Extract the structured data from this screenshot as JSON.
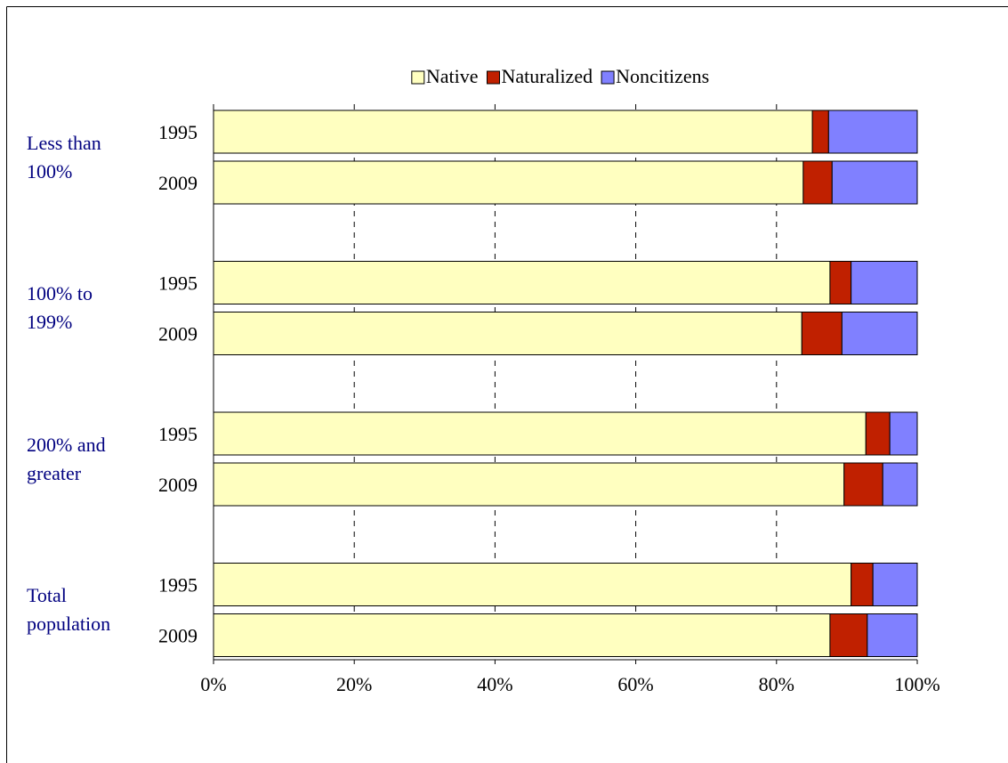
{
  "chart_data": {
    "type": "bar",
    "orientation": "horizontal",
    "stacked": true,
    "groups": [
      "Less than 100%",
      "100% to 199%",
      "200% and greater",
      "Total population"
    ],
    "categories": [
      "1995",
      "2009",
      "1995",
      "2009",
      "1995",
      "2009",
      "1995",
      "2009"
    ],
    "series": [
      {
        "name": "Native",
        "color": "#ffffc0",
        "values": [
          85.1,
          83.8,
          87.6,
          83.6,
          92.7,
          89.6,
          90.6,
          87.6
        ]
      },
      {
        "name": "Naturalized",
        "color": "#c02000",
        "values": [
          2.3,
          4.1,
          3.0,
          5.7,
          3.4,
          5.5,
          3.1,
          5.3
        ]
      },
      {
        "name": "Noncitizens",
        "color": "#8080ff",
        "values": [
          12.6,
          12.1,
          9.4,
          10.7,
          3.9,
          4.9,
          6.3,
          7.1
        ]
      }
    ],
    "xlim": [
      0,
      100
    ],
    "xticks": [
      {
        "value": 0,
        "label": "0%"
      },
      {
        "value": 20,
        "label": "20%"
      },
      {
        "value": 40,
        "label": "40%"
      },
      {
        "value": 60,
        "label": "60%"
      },
      {
        "value": 80,
        "label": "80%"
      },
      {
        "value": 100,
        "label": "100%"
      }
    ],
    "grid": true,
    "legend": "top"
  }
}
